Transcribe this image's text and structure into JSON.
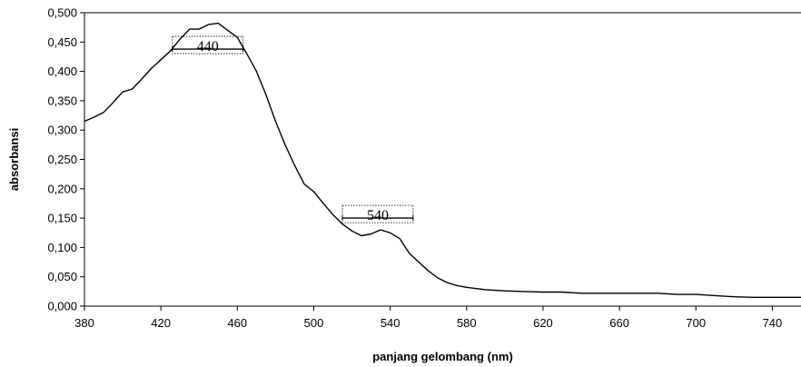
{
  "chart_data": {
    "type": "line",
    "title": "",
    "xlabel": "panjang gelombang (nm)",
    "ylabel": "absorbansi",
    "xlim": [
      380,
      755
    ],
    "ylim": [
      0,
      0.5
    ],
    "x_ticks": [
      380,
      420,
      460,
      500,
      540,
      580,
      620,
      660,
      700,
      740
    ],
    "x_tick_labels": [
      "380",
      "420",
      "460",
      "500",
      "540",
      "580",
      "620",
      "660",
      "700",
      "740"
    ],
    "y_ticks": [
      0,
      0.05,
      0.1,
      0.15,
      0.2,
      0.25,
      0.3,
      0.35,
      0.4,
      0.45,
      0.5
    ],
    "y_tick_labels": [
      "0,000",
      "0,050",
      "0,100",
      "0,150",
      "0,200",
      "0,250",
      "0,300",
      "0,350",
      "0,400",
      "0,450",
      "0,500"
    ],
    "grid": false,
    "legend": "none",
    "color": "#000000",
    "series": [
      {
        "x": [
          380,
          385,
          390,
          395,
          400,
          405,
          410,
          415,
          420,
          425,
          430,
          435,
          440,
          445,
          450,
          455,
          460,
          465,
          470,
          475,
          480,
          485,
          490,
          495,
          500,
          505,
          510,
          515,
          520,
          525,
          530,
          535,
          540,
          545,
          550,
          555,
          560,
          565,
          570,
          575,
          580,
          590,
          600,
          610,
          620,
          630,
          640,
          650,
          660,
          670,
          680,
          690,
          700,
          710,
          720,
          730,
          740,
          755
        ],
        "y": [
          0.315,
          0.322,
          0.33,
          0.347,
          0.365,
          0.37,
          0.387,
          0.405,
          0.42,
          0.435,
          0.455,
          0.472,
          0.472,
          0.48,
          0.482,
          0.47,
          0.458,
          0.43,
          0.4,
          0.36,
          0.315,
          0.275,
          0.24,
          0.208,
          0.195,
          0.175,
          0.156,
          0.14,
          0.128,
          0.12,
          0.123,
          0.13,
          0.125,
          0.115,
          0.09,
          0.075,
          0.06,
          0.048,
          0.04,
          0.035,
          0.032,
          0.028,
          0.026,
          0.025,
          0.024,
          0.024,
          0.022,
          0.022,
          0.022,
          0.022,
          0.022,
          0.02,
          0.02,
          0.018,
          0.016,
          0.015,
          0.015,
          0.015
        ]
      }
    ],
    "annotations": [
      {
        "label": "440",
        "x_from": 426,
        "x_to": 463,
        "y": 0.438
      },
      {
        "label": "540",
        "x_from": 515,
        "x_to": 552,
        "y": 0.15
      }
    ]
  }
}
